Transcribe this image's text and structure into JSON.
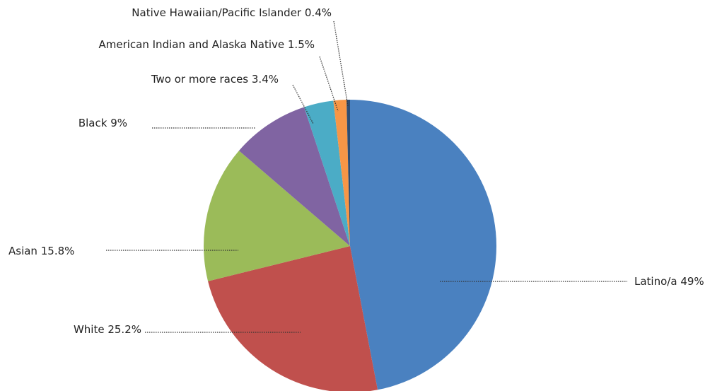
{
  "chart_data": {
    "type": "pie",
    "categories": [
      "Latino/a",
      "White",
      "Asian",
      "Black",
      "Two or more races",
      "American Indian and Alaska Native",
      "Native Hawaiian/Pacific Islander"
    ],
    "values": [
      49,
      25.2,
      15.8,
      9,
      3.4,
      1.5,
      0.4
    ],
    "value_labels": [
      "49%",
      "25.2%",
      "15.8%",
      "9%",
      "3.4%",
      "1.5%",
      "0.4%"
    ],
    "colors": [
      "#4a81c0",
      "#c0504d",
      "#9bbb59",
      "#8064a2",
      "#4bacc6",
      "#f79646",
      "#2c4d75"
    ]
  }
}
